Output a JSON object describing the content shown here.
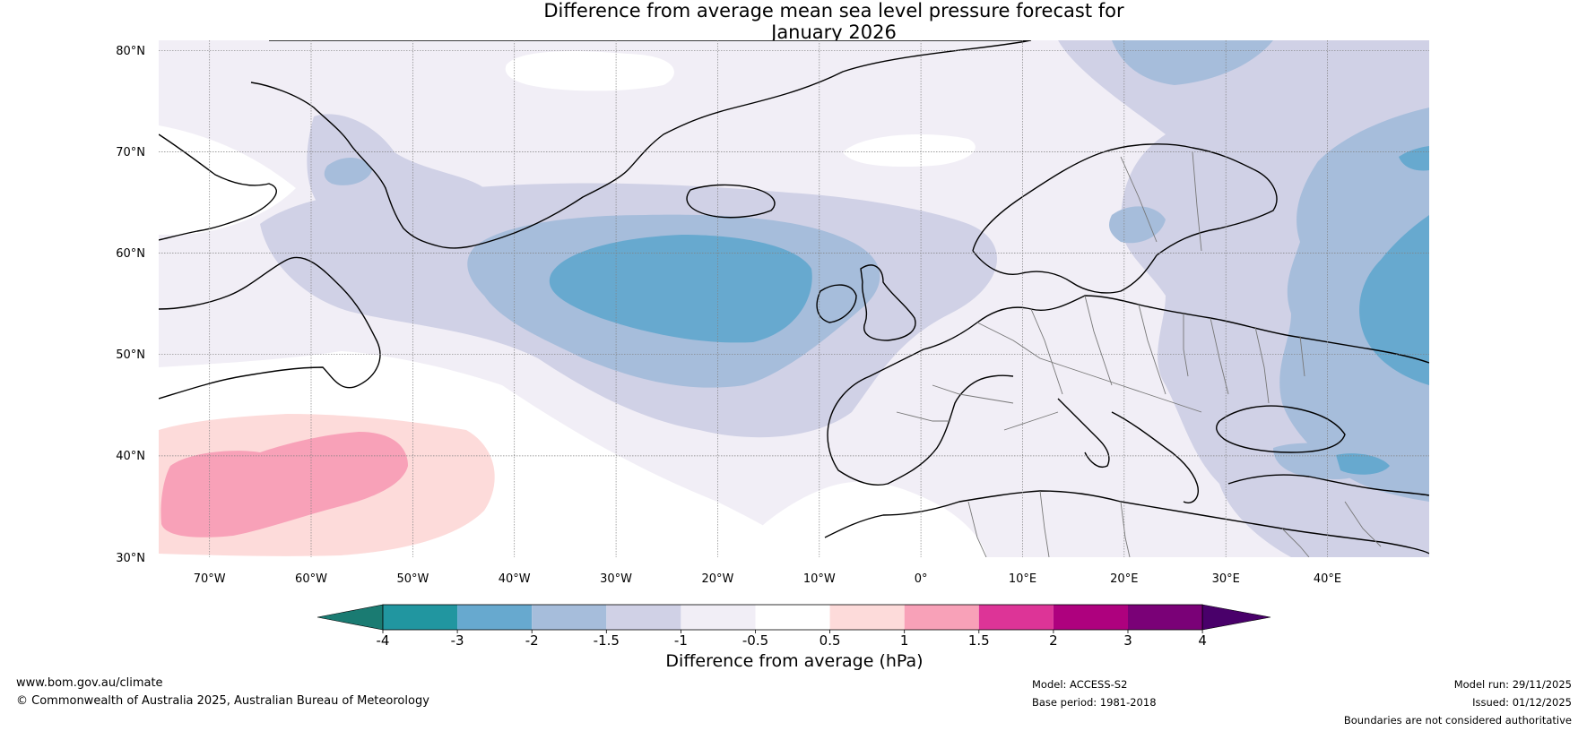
{
  "title": {
    "line1": "Difference from average mean sea level pressure forecast for",
    "line2": "January 2026"
  },
  "map": {
    "lat_labels": [
      "80°N",
      "70°N",
      "60°N",
      "50°N",
      "40°N",
      "30°N"
    ],
    "lon_labels": [
      "70°W",
      "60°W",
      "50°W",
      "40°W",
      "30°W",
      "20°W",
      "10°W",
      "0°",
      "10°E",
      "20°E",
      "30°E",
      "40°E"
    ],
    "extent": {
      "lon": [
        -75,
        50
      ],
      "lat": [
        30,
        81
      ]
    }
  },
  "colorbar": {
    "title": "Difference from average (hPa)",
    "boundaries": [
      "-4",
      "-3",
      "-2",
      "-1.5",
      "-1",
      "-0.5",
      "0.5",
      "1",
      "1.5",
      "2",
      "3",
      "4"
    ],
    "colors": [
      "#1a7b72",
      "#2196a0",
      "#67a9cf",
      "#a6bddb",
      "#d0d1e6",
      "#f1eef6",
      "#ffffff",
      "#fddbda",
      "#f8a1b8",
      "#dd3497",
      "#ae017e",
      "#7a0177",
      "#49006a"
    ]
  },
  "footer": {
    "website": "www.bom.gov.au/climate",
    "copyright": "© Commonwealth of Australia 2025, Australian Bureau of Meteorology",
    "model": "Model: ACCESS-S2",
    "base_period": "Base period: 1981-2018",
    "model_run": "Model run: 29/11/2025",
    "issued": "Issued: 01/12/2025",
    "disclaimer": "Boundaries are not considered authoritative"
  }
}
